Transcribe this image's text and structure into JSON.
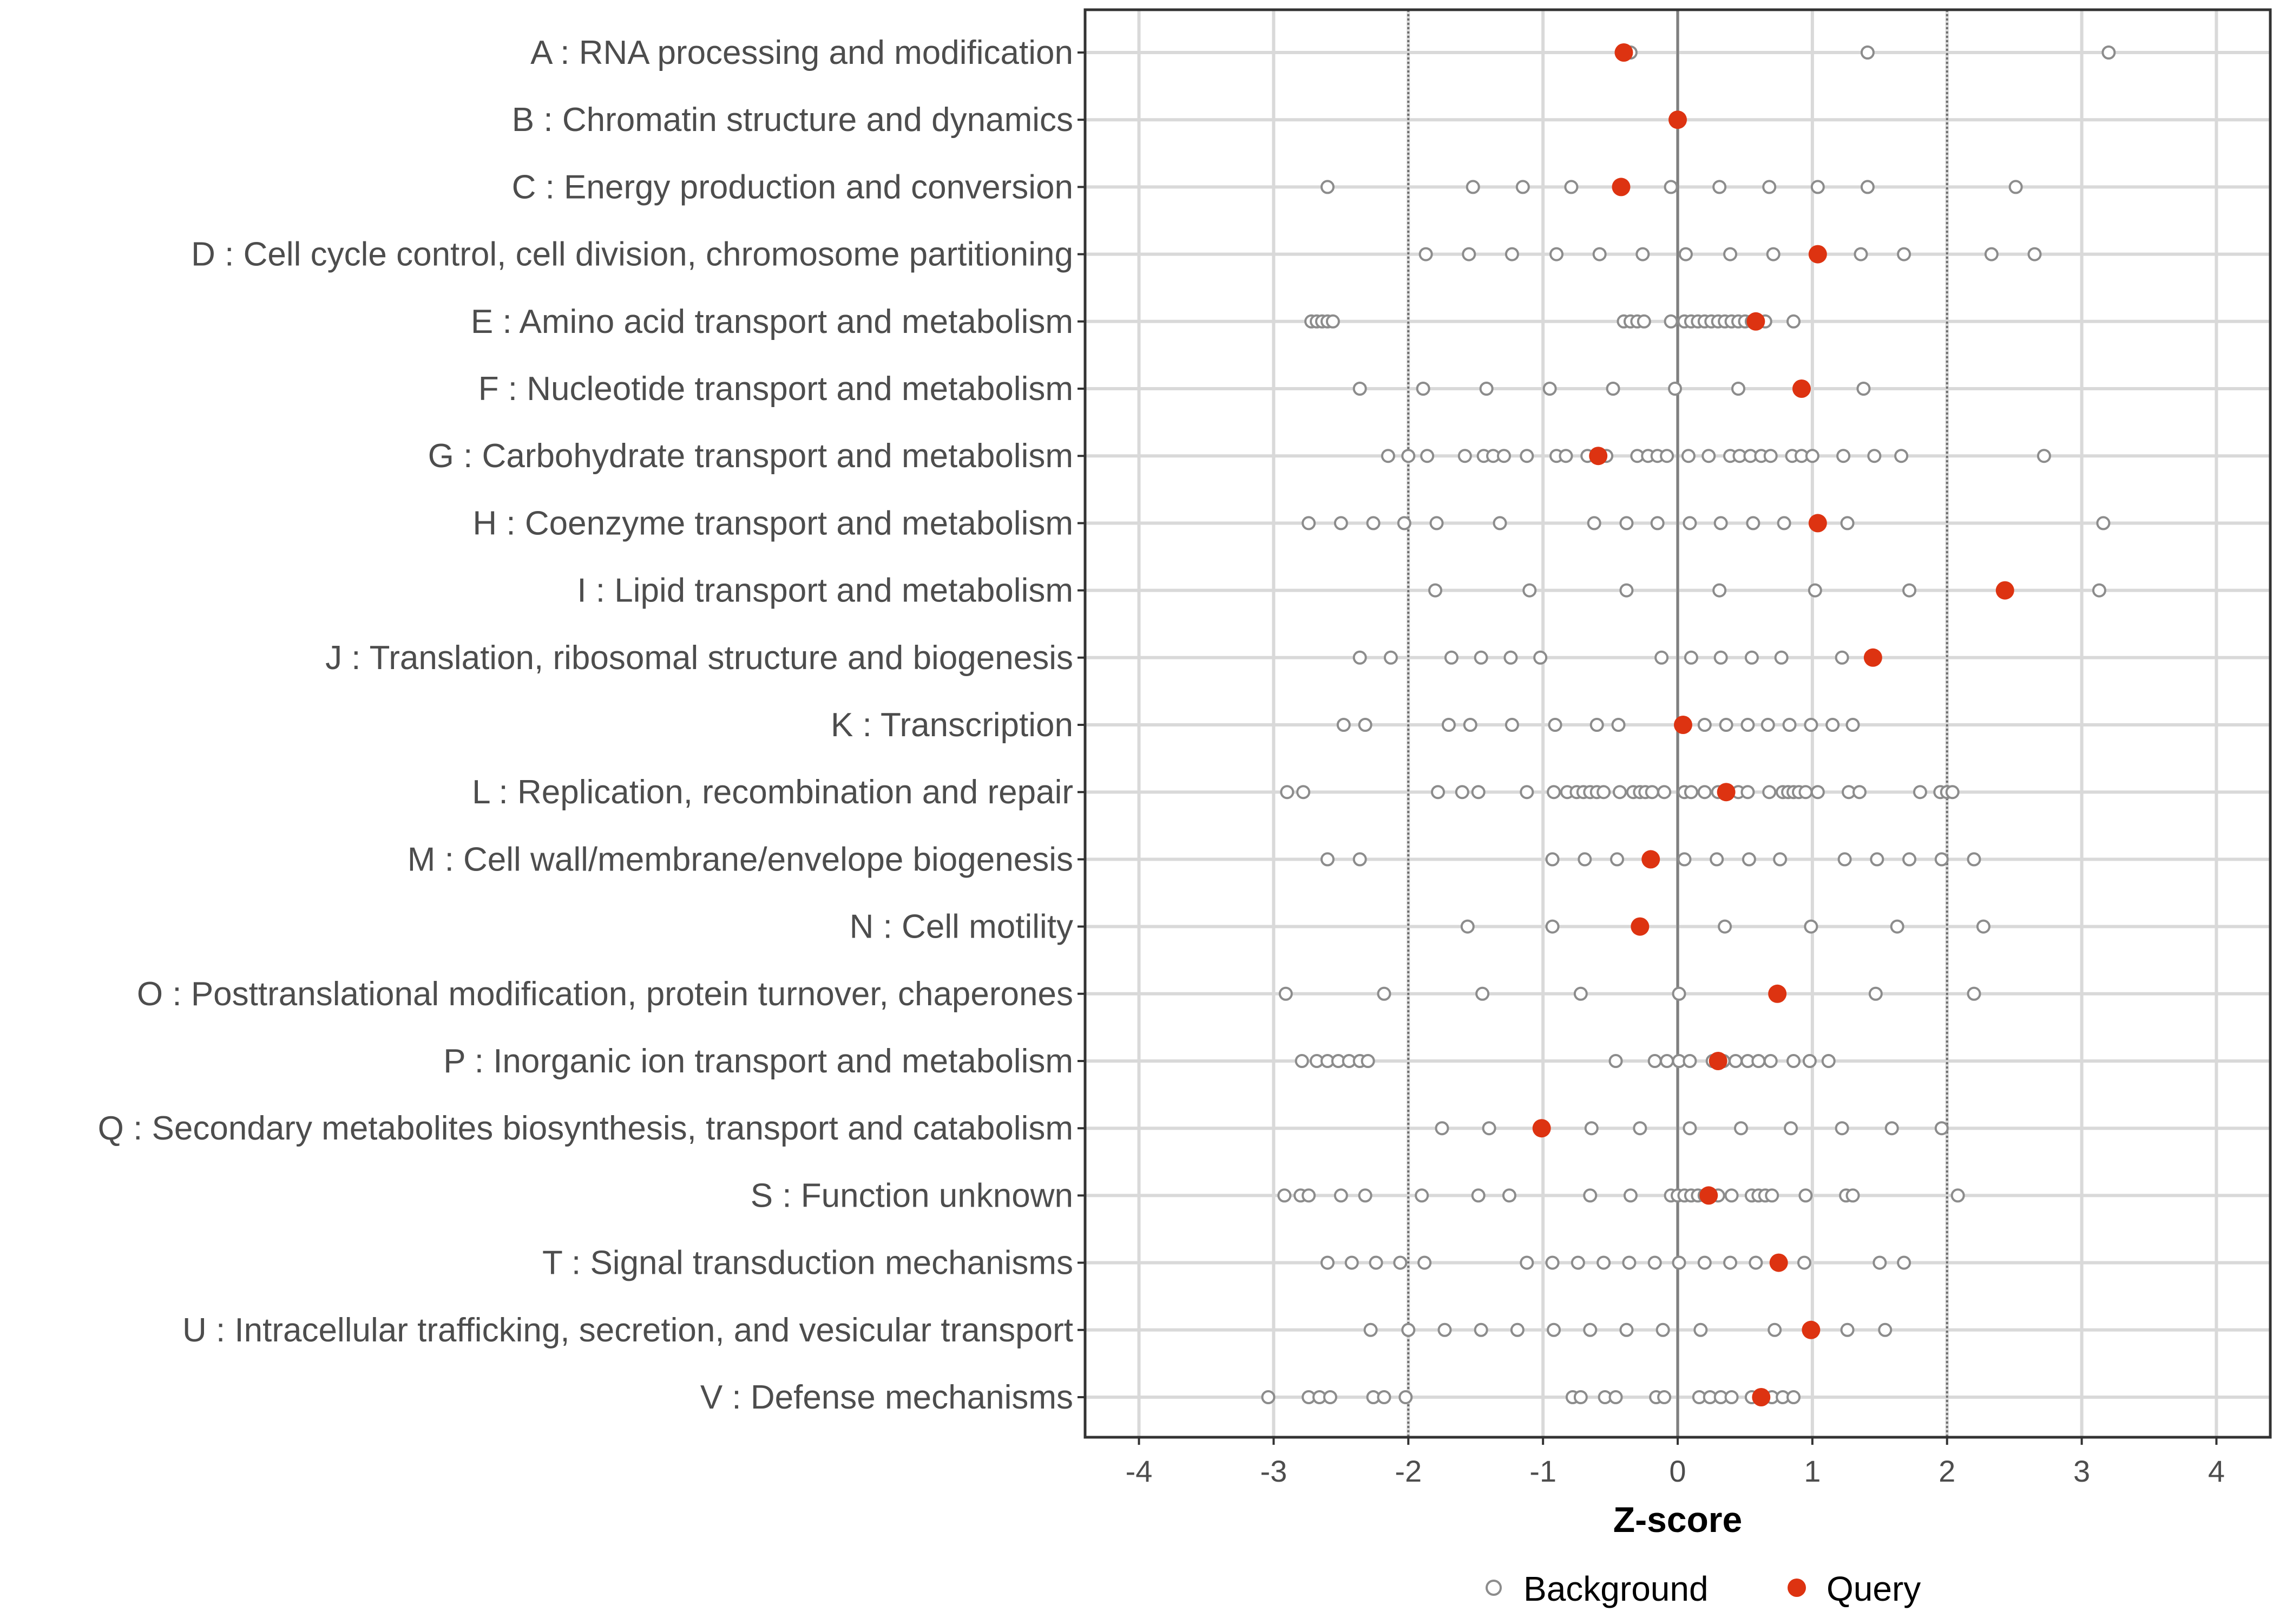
{
  "chart_data": {
    "type": "scatter",
    "xlabel": "Z-score",
    "ylabel": "",
    "xlim": [
      -4.4,
      4.4
    ],
    "x_ticks": [
      -4,
      -3,
      -2,
      -1,
      0,
      1,
      2,
      3,
      4
    ],
    "x_tick_labels": [
      "-4",
      "-3",
      "-2",
      "-1",
      "0",
      "1",
      "2",
      "3",
      "4"
    ],
    "reference_lines": [
      {
        "x": 0,
        "style": "solid"
      },
      {
        "x": -2,
        "style": "dotted"
      },
      {
        "x": 2,
        "style": "dotted"
      }
    ],
    "grid": true,
    "legend": {
      "position": "bottom",
      "entries": [
        {
          "name": "Background",
          "marker": "open-circle",
          "color": "#8c8c8c"
        },
        {
          "name": "Query",
          "marker": "filled-circle",
          "color": "#dd3311"
        }
      ]
    },
    "categories": [
      "A : RNA processing and modification",
      "B : Chromatin structure and dynamics",
      "C : Energy production and conversion",
      "D : Cell cycle control, cell division, chromosome partitioning",
      "E : Amino acid transport and metabolism",
      "F : Nucleotide transport and metabolism",
      "G : Carbohydrate transport and metabolism",
      "H : Coenzyme transport and metabolism",
      "I : Lipid transport and metabolism",
      "J : Translation, ribosomal structure and biogenesis",
      "K : Transcription",
      "L : Replication, recombination and repair",
      "M : Cell wall/membrane/envelope biogenesis",
      "N : Cell motility",
      "O : Posttranslational modification, protein turnover, chaperones",
      "P : Inorganic ion transport and metabolism",
      "Q : Secondary metabolites biosynthesis, transport and catabolism",
      "S : Function unknown",
      "T : Signal transduction mechanisms",
      "U : Intracellular trafficking, secretion, and vesicular transport",
      "V : Defense mechanisms"
    ],
    "series": [
      {
        "name": "Background",
        "values": [
          [
            -0.35,
            1.41,
            3.2
          ],
          [
            0.0
          ],
          [
            -2.6,
            -1.52,
            -1.15,
            -0.79,
            -0.05,
            0.31,
            0.68,
            1.04,
            1.41,
            2.51
          ],
          [
            -1.87,
            -1.55,
            -1.23,
            -0.9,
            -0.58,
            -0.26,
            0.06,
            0.39,
            0.71,
            1.36,
            1.68,
            2.33,
            2.65
          ],
          [
            -2.72,
            -2.68,
            -2.64,
            -2.6,
            -2.56,
            -0.4,
            -0.35,
            -0.3,
            -0.25,
            -0.05,
            0.05,
            0.1,
            0.15,
            0.2,
            0.25,
            0.3,
            0.35,
            0.4,
            0.45,
            0.5,
            0.55,
            0.6,
            0.65,
            0.86
          ],
          [
            -2.36,
            -1.89,
            -1.42,
            -0.95,
            -0.48,
            -0.02,
            0.45,
            1.38
          ],
          [
            -2.15,
            -2.0,
            -1.86,
            -1.58,
            -1.44,
            -1.37,
            -1.29,
            -1.12,
            -0.9,
            -0.83,
            -0.67,
            -0.6,
            -0.53,
            -0.3,
            -0.22,
            -0.15,
            -0.08,
            0.08,
            0.23,
            0.39,
            0.46,
            0.54,
            0.62,
            0.69,
            0.85,
            0.92,
            1.0,
            1.23,
            1.46,
            1.66,
            2.72
          ],
          [
            -2.74,
            -2.5,
            -2.26,
            -2.03,
            -1.79,
            -1.32,
            -0.62,
            -0.38,
            -0.15,
            0.09,
            0.32,
            0.56,
            0.79,
            1.26,
            3.16
          ],
          [
            -1.8,
            -1.1,
            -0.38,
            0.31,
            1.02,
            1.72,
            3.13
          ],
          [
            -2.36,
            -2.13,
            -1.68,
            -1.46,
            -1.24,
            -1.02,
            -0.12,
            0.1,
            0.32,
            0.55,
            0.77,
            1.22
          ],
          [
            -2.48,
            -2.32,
            -1.7,
            -1.54,
            -1.23,
            -0.91,
            -0.6,
            -0.44,
            0.2,
            0.36,
            0.52,
            0.67,
            0.83,
            0.99,
            1.15,
            1.3
          ],
          [
            -2.9,
            -2.78,
            -1.78,
            -1.6,
            -1.48,
            -1.12,
            -0.92,
            -0.82,
            -0.75,
            -0.7,
            -0.65,
            -0.6,
            -0.55,
            -0.43,
            -0.33,
            -0.28,
            -0.24,
            -0.19,
            -0.1,
            0.05,
            0.1,
            0.2,
            0.3,
            0.45,
            0.52,
            0.68,
            0.78,
            0.82,
            0.86,
            0.9,
            0.95,
            1.04,
            1.27,
            1.35,
            1.8,
            1.95,
            2.0,
            2.04
          ],
          [
            -2.6,
            -2.36,
            -0.93,
            -0.69,
            -0.45,
            0.05,
            0.29,
            0.53,
            0.76,
            1.24,
            1.48,
            1.72,
            1.96,
            2.2
          ],
          [
            -1.56,
            -0.93,
            -0.29,
            0.35,
            0.99,
            1.63,
            2.27
          ],
          [
            -2.91,
            -2.18,
            -1.45,
            -0.72,
            0.01,
            1.47,
            2.2
          ],
          [
            -2.79,
            -2.68,
            -2.6,
            -2.52,
            -2.44,
            -2.36,
            -2.3,
            -0.46,
            -0.17,
            -0.08,
            0.01,
            0.09,
            0.26,
            0.34,
            0.43,
            0.52,
            0.6,
            0.69,
            0.86,
            0.98,
            1.12
          ],
          [
            -1.75,
            -1.4,
            -0.64,
            -0.28,
            0.09,
            0.47,
            0.84,
            1.22,
            1.59,
            1.96
          ],
          [
            -2.92,
            -2.8,
            -2.74,
            -2.5,
            -2.32,
            -1.9,
            -1.48,
            -1.25,
            -0.65,
            -0.35,
            -0.05,
            0.0,
            0.05,
            0.1,
            0.15,
            0.2,
            0.3,
            0.4,
            0.55,
            0.6,
            0.65,
            0.7,
            0.95,
            1.25,
            1.3,
            2.08
          ],
          [
            -2.6,
            -2.42,
            -2.24,
            -2.06,
            -1.88,
            -1.12,
            -0.93,
            -0.74,
            -0.55,
            -0.36,
            -0.17,
            0.01,
            0.2,
            0.39,
            0.58,
            0.94,
            1.5,
            1.68
          ],
          [
            -2.28,
            -2.0,
            -1.73,
            -1.46,
            -1.19,
            -0.92,
            -0.65,
            -0.38,
            -0.11,
            0.17,
            0.72,
            1.26,
            1.54
          ],
          [
            -3.04,
            -2.74,
            -2.66,
            -2.58,
            -2.26,
            -2.18,
            -2.02,
            -0.78,
            -0.72,
            -0.54,
            -0.46,
            -0.16,
            -0.1,
            0.16,
            0.24,
            0.32,
            0.4,
            0.55,
            0.63,
            0.7,
            0.78,
            0.86
          ]
        ]
      },
      {
        "name": "Query",
        "values": [
          -0.4,
          0.0,
          -0.42,
          1.04,
          0.58,
          0.92,
          -0.59,
          1.04,
          2.43,
          1.45,
          0.04,
          0.36,
          -0.2,
          -0.28,
          0.74,
          0.3,
          -1.01,
          0.23,
          0.75,
          0.99,
          0.62
        ]
      }
    ]
  }
}
